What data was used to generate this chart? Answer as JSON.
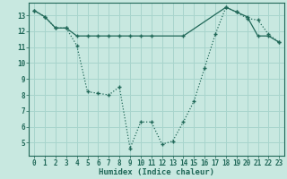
{
  "xlabel": "Humidex (Indice chaleur)",
  "ylabel": "",
  "bg_color": "#c8e8e0",
  "grid_color": "#a8d4cc",
  "line_color": "#206858",
  "xlim": [
    -0.5,
    23.5
  ],
  "ylim": [
    4.2,
    13.8
  ],
  "yticks": [
    5,
    6,
    7,
    8,
    9,
    10,
    11,
    12,
    13
  ],
  "xticks": [
    0,
    1,
    2,
    3,
    4,
    5,
    6,
    7,
    8,
    9,
    10,
    11,
    12,
    13,
    14,
    15,
    16,
    17,
    18,
    19,
    20,
    21,
    22,
    23
  ],
  "line1_x": [
    0,
    1,
    2,
    3,
    4,
    5,
    6,
    7,
    8,
    9,
    10,
    11,
    12,
    13,
    14,
    15,
    16,
    17,
    18,
    19,
    20,
    21,
    22,
    23
  ],
  "line1_y": [
    13.3,
    12.9,
    12.2,
    12.2,
    11.1,
    8.2,
    8.1,
    8.0,
    8.5,
    4.65,
    6.3,
    6.3,
    4.9,
    5.1,
    6.3,
    7.6,
    9.7,
    11.8,
    13.5,
    13.2,
    12.8,
    12.7,
    11.8,
    11.3
  ],
  "line2_x": [
    0,
    1,
    2,
    3,
    4,
    5,
    6,
    7,
    8,
    9,
    10,
    11,
    14,
    18,
    19,
    20,
    21,
    22,
    23
  ],
  "line2_y": [
    13.3,
    12.9,
    12.2,
    12.2,
    11.7,
    11.7,
    11.7,
    11.7,
    11.7,
    11.7,
    11.7,
    11.7,
    11.7,
    13.5,
    13.2,
    12.9,
    11.7,
    11.7,
    11.3
  ],
  "tick_fontsize": 5.5,
  "xlabel_fontsize": 6.5
}
